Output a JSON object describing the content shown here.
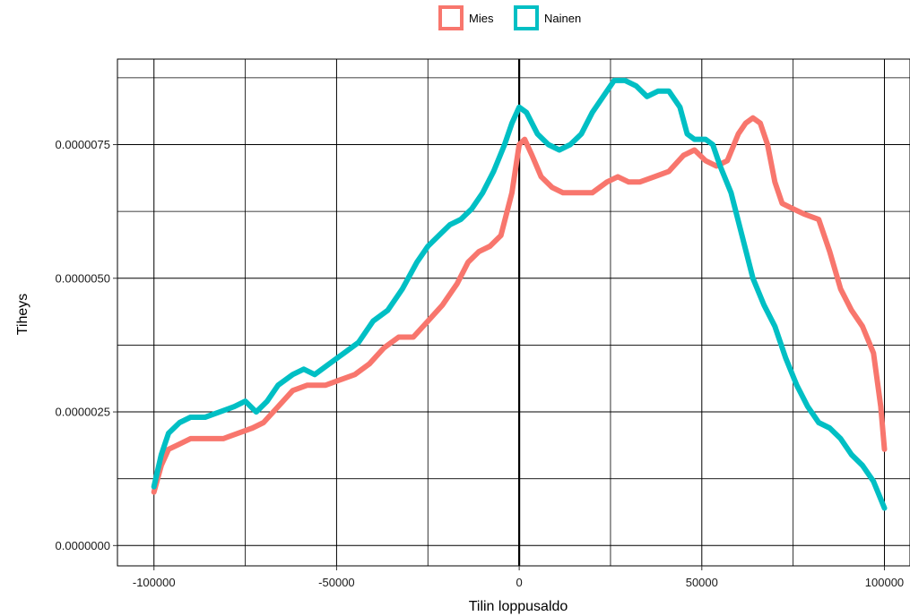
{
  "chart_data": {
    "type": "line",
    "title": "",
    "xlabel": "Tilin loppusaldo",
    "ylabel": "Tiheys",
    "xlim": [
      -110000,
      107000
    ],
    "ylim": [
      -3.8e-07,
      9.1e-06
    ],
    "x_ticks": [
      -100000,
      -50000,
      0,
      50000,
      100000
    ],
    "x_tick_labels": [
      "-100000",
      "-50000",
      "0",
      "50000",
      "100000"
    ],
    "y_ticks": [
      0.0,
      2.5e-06,
      5e-06,
      7.5e-06
    ],
    "y_tick_labels": [
      "0.0000000",
      "0.0000025",
      "0.0000050",
      "0.0000075"
    ],
    "grid": true,
    "legend_position": "top",
    "series": [
      {
        "name": "Mies",
        "color": "#F8766D",
        "x": [
          -100000,
          -98000,
          -96000,
          -93000,
          -90000,
          -85000,
          -81000,
          -77000,
          -73000,
          -70000,
          -66000,
          -62000,
          -58000,
          -53000,
          -49000,
          -45000,
          -41000,
          -37000,
          -33000,
          -29000,
          -25000,
          -21000,
          -17000,
          -14000,
          -11000,
          -8000,
          -5000,
          -2000,
          0,
          1500,
          3500,
          6000,
          9000,
          12000,
          16000,
          20000,
          24000,
          27000,
          30000,
          33000,
          37000,
          41000,
          45000,
          48000,
          51000,
          54000,
          57000,
          60000,
          62000,
          64000,
          66000,
          68000,
          70000,
          72000,
          75000,
          78000,
          82000,
          85000,
          88000,
          91000,
          94000,
          97000,
          99000,
          100000
        ],
        "values": [
          1e-06,
          1.5e-06,
          1.8e-06,
          1.9e-06,
          2e-06,
          2e-06,
          2e-06,
          2.1e-06,
          2.2e-06,
          2.3e-06,
          2.6e-06,
          2.9e-06,
          3e-06,
          3e-06,
          3.1e-06,
          3.2e-06,
          3.4e-06,
          3.7e-06,
          3.9e-06,
          3.9e-06,
          4.2e-06,
          4.5e-06,
          4.9e-06,
          5.3e-06,
          5.5e-06,
          5.6e-06,
          5.8e-06,
          6.6e-06,
          7.5e-06,
          7.6e-06,
          7.3e-06,
          6.9e-06,
          6.7e-06,
          6.6e-06,
          6.6e-06,
          6.6e-06,
          6.8e-06,
          6.9e-06,
          6.8e-06,
          6.8e-06,
          6.9e-06,
          7e-06,
          7.3e-06,
          7.4e-06,
          7.2e-06,
          7.1e-06,
          7.2e-06,
          7.7e-06,
          7.9e-06,
          8e-06,
          7.9e-06,
          7.5e-06,
          6.8e-06,
          6.4e-06,
          6.3e-06,
          6.2e-06,
          6.1e-06,
          5.5e-06,
          4.8e-06,
          4.4e-06,
          4.1e-06,
          3.6e-06,
          2.6e-06,
          1.8e-06
        ]
      },
      {
        "name": "Nainen",
        "color": "#00BFC4",
        "x": [
          -100000,
          -98000,
          -96000,
          -93000,
          -90000,
          -86000,
          -82000,
          -78000,
          -75000,
          -72000,
          -69000,
          -66000,
          -62000,
          -59000,
          -56000,
          -52000,
          -48000,
          -44000,
          -40000,
          -36000,
          -32000,
          -28000,
          -25000,
          -22000,
          -19000,
          -16000,
          -13000,
          -10000,
          -7000,
          -4000,
          -2000,
          0,
          2000,
          5000,
          8000,
          11000,
          14000,
          17000,
          20000,
          23000,
          26000,
          29000,
          32000,
          35000,
          38000,
          41000,
          44000,
          46000,
          48000,
          51000,
          53000,
          55000,
          58000,
          61000,
          64000,
          67000,
          70000,
          73000,
          76000,
          79000,
          82000,
          85000,
          88000,
          91000,
          94000,
          97000,
          100000
        ],
        "values": [
          1.1e-06,
          1.7e-06,
          2.1e-06,
          2.3e-06,
          2.4e-06,
          2.4e-06,
          2.5e-06,
          2.6e-06,
          2.7e-06,
          2.5e-06,
          2.7e-06,
          3e-06,
          3.2e-06,
          3.3e-06,
          3.2e-06,
          3.4e-06,
          3.6e-06,
          3.8e-06,
          4.2e-06,
          4.4e-06,
          4.8e-06,
          5.3e-06,
          5.6e-06,
          5.8e-06,
          6e-06,
          6.1e-06,
          6.3e-06,
          6.6e-06,
          7e-06,
          7.5e-06,
          7.9e-06,
          8.2e-06,
          8.1e-06,
          7.7e-06,
          7.5e-06,
          7.4e-06,
          7.5e-06,
          7.7e-06,
          8.1e-06,
          8.4e-06,
          8.7e-06,
          8.7e-06,
          8.6e-06,
          8.4e-06,
          8.5e-06,
          8.5e-06,
          8.2e-06,
          7.7e-06,
          7.6e-06,
          7.6e-06,
          7.5e-06,
          7.1e-06,
          6.6e-06,
          5.8e-06,
          5e-06,
          4.5e-06,
          4.1e-06,
          3.5e-06,
          3e-06,
          2.6e-06,
          2.3e-06,
          2.2e-06,
          2e-06,
          1.7e-06,
          1.5e-06,
          1.2e-06,
          7e-07
        ]
      }
    ]
  }
}
